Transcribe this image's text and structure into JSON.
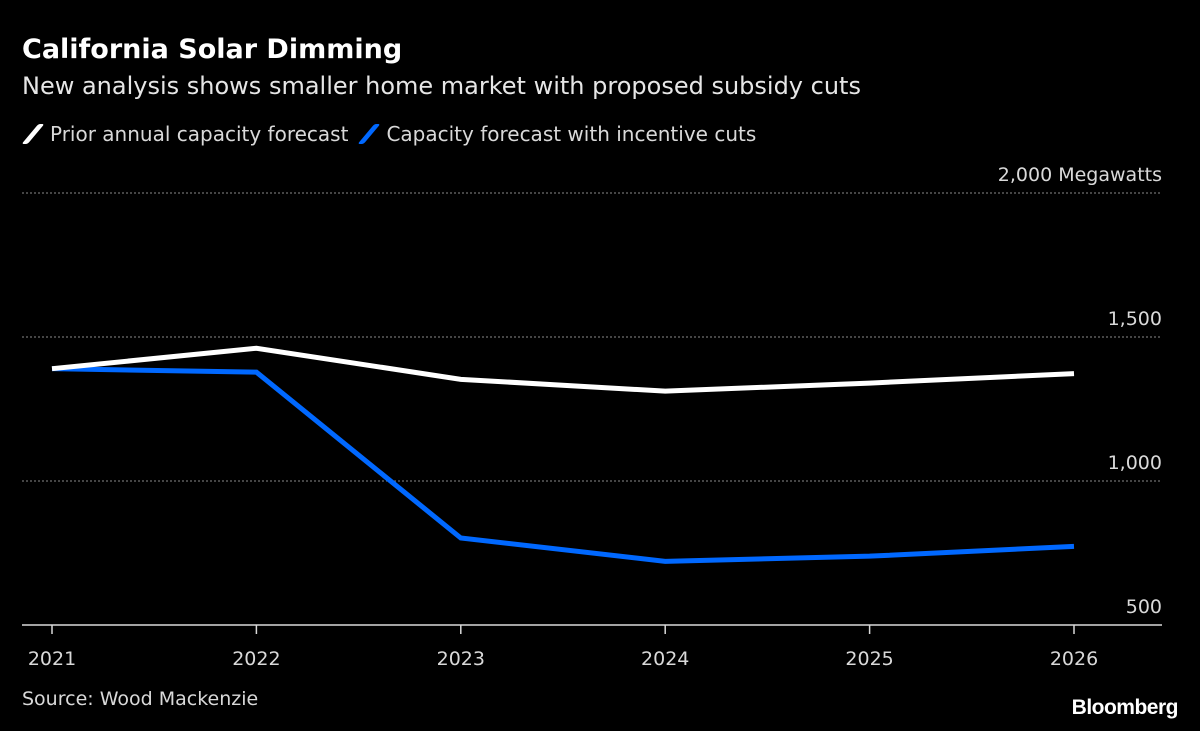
{
  "chart_data": {
    "type": "line",
    "title": "California Solar Dimming",
    "subtitle": "New analysis shows smaller home market with proposed subsidy cuts",
    "x": [
      "2021",
      "2022",
      "2023",
      "2024",
      "2025",
      "2026"
    ],
    "series": [
      {
        "name": "Prior annual capacity forecast",
        "color": "#ffffff",
        "values": [
          1390,
          1461,
          1353,
          1312,
          1340,
          1373
        ]
      },
      {
        "name": "Capacity forecast with incentive cuts",
        "color": "#0068ff",
        "values": [
          1390,
          1378,
          802,
          721,
          739,
          773
        ]
      }
    ],
    "ylim": [
      500,
      2000
    ],
    "yticks": [
      {
        "value": 2000,
        "label": "2,000 Megawatts"
      },
      {
        "value": 1500,
        "label": "1,500"
      },
      {
        "value": 1000,
        "label": "1,000"
      },
      {
        "value": 500,
        "label": "500"
      }
    ],
    "grid": true,
    "legend": "top-left",
    "source": "Source: Wood Mackenzie",
    "brand": "Bloomberg"
  }
}
